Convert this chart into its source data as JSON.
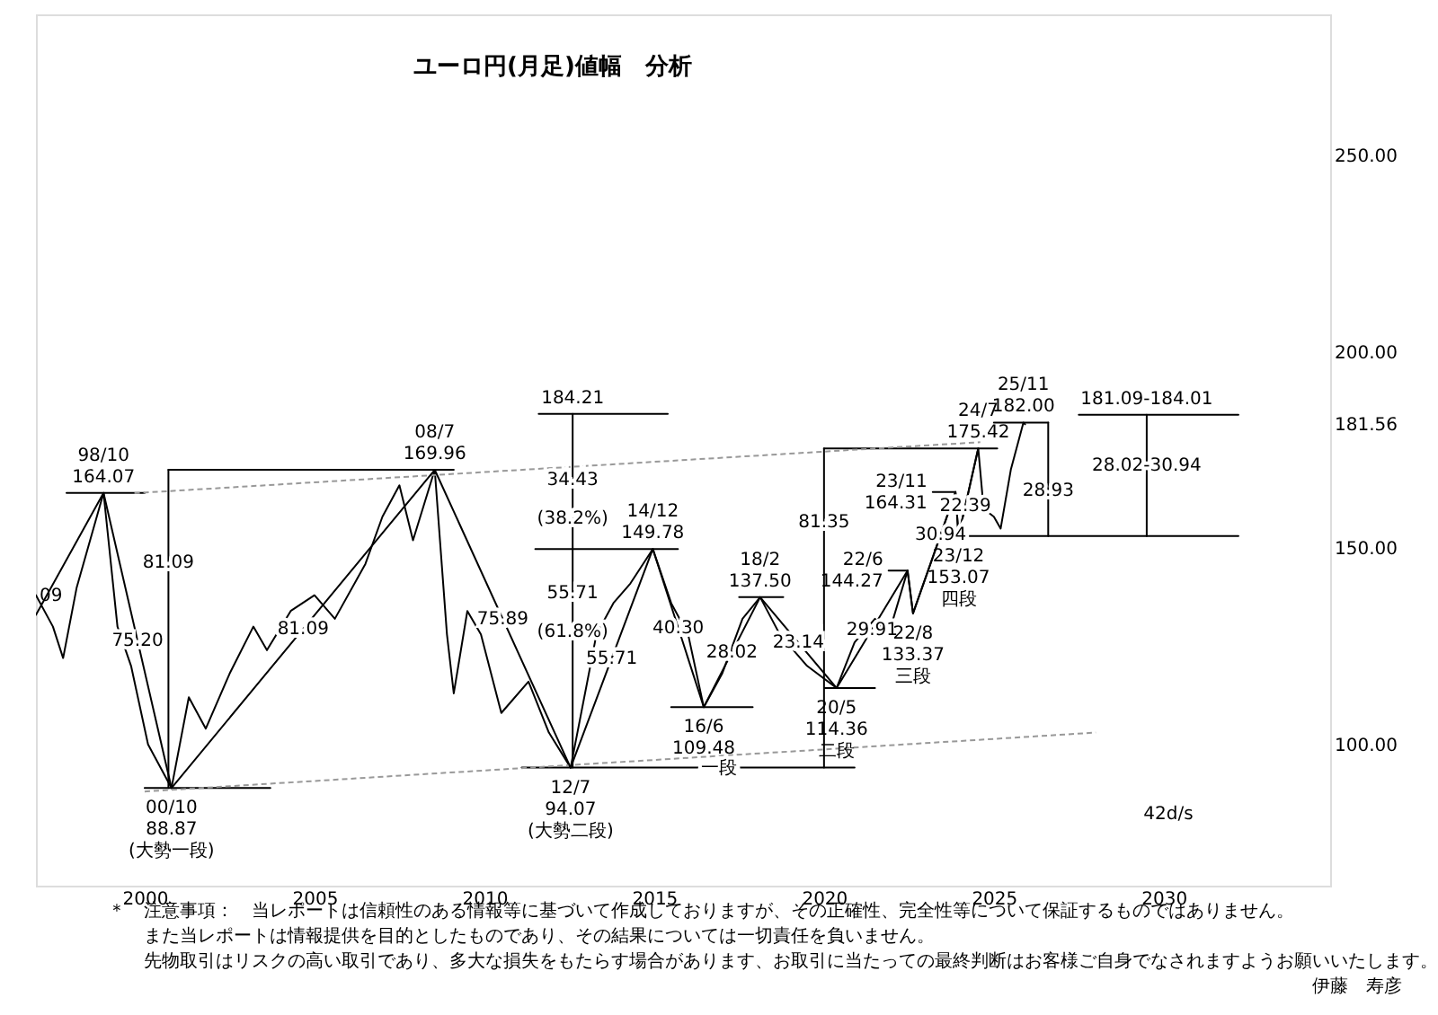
{
  "chart_data": {
    "type": "line",
    "title": "ユーロ円(月足)値幅　分析",
    "marker": "none",
    "line_style": "solid",
    "xlim": [
      1996.8,
      2034.9
    ],
    "xticks": [
      2000,
      2005,
      2010,
      2015,
      2020,
      2025,
      2030
    ],
    "ylim": [
      64,
      286
    ],
    "yticks": [
      {
        "value": 100,
        "label": "100.00"
      },
      {
        "value": 150,
        "label": "150.00"
      },
      {
        "value": 181.56,
        "label": "181.56"
      },
      {
        "value": 200,
        "label": "200.00"
      },
      {
        "value": 250,
        "label": "250.00"
      }
    ],
    "series": [
      {
        "color": "#000000",
        "x": [
          1996.8,
          1997.3,
          1997.6,
          1998.0,
          1998.79,
          1999.2,
          1999.6,
          2000.1,
          2000.79,
          2001.3,
          2001.8,
          2002.5,
          2003.2,
          2003.6,
          2004.3,
          2005.0,
          2005.6,
          2006.5,
          2007.0,
          2007.5,
          2007.9,
          2008.54,
          2008.9,
          2009.1,
          2009.5,
          2009.9,
          2010.5,
          2011.3,
          2011.9,
          2012.54,
          2013.3,
          2013.8,
          2014.3,
          2014.96,
          2015.5,
          2016.0,
          2016.46,
          2017.0,
          2017.6,
          2018.12,
          2018.7,
          2019.5,
          2020.37,
          2020.9,
          2021.5,
          2021.9,
          2022.46,
          2022.62,
          2023.3,
          2023.87,
          2023.96,
          2024.54,
          2024.7,
          2025.0,
          2025.2,
          2025.5,
          2025.87,
          2025.92
        ],
        "values": [
          138,
          130,
          122,
          140,
          164.07,
          130,
          120,
          100,
          88.87,
          112,
          104,
          118,
          130,
          124,
          134,
          138,
          132,
          146,
          158,
          166,
          152,
          169.96,
          128,
          113,
          134,
          128,
          108,
          116,
          103,
          94.07,
          128,
          136,
          141,
          149.78,
          136,
          128,
          109.48,
          118,
          132,
          137.5,
          128,
          120,
          114.36,
          126,
          132,
          128,
          144.27,
          133.37,
          150,
          164.31,
          153.07,
          175.42,
          160,
          158,
          155,
          170,
          182.0,
          181.56
        ]
      },
      {
        "type": "line",
        "color": "#000000",
        "x": [
          1997.7,
          2000.0
        ],
        "values": [
          164.07,
          164.07
        ]
      },
      {
        "type": "line",
        "color": "#000000",
        "x": [
          2000.0,
          2003.7
        ],
        "values": [
          88.87,
          88.87
        ]
      },
      {
        "type": "line",
        "color": "#000000",
        "x": [
          2000.7,
          2009.1
        ],
        "values": [
          169.96,
          169.96
        ]
      },
      {
        "type": "line",
        "color": "#000000",
        "x": [
          2000.7,
          2000.7
        ],
        "values": [
          88.87,
          169.96
        ]
      },
      {
        "type": "line",
        "color": "#000000",
        "x": [
          2011.6,
          2015.4
        ],
        "values": [
          184.21,
          184.21
        ]
      },
      {
        "type": "line",
        "color": "#000000",
        "x": [
          2011.5,
          2015.7
        ],
        "values": [
          149.78,
          149.78
        ]
      },
      {
        "type": "line",
        "color": "#000000",
        "x": [
          2012.6,
          2012.6
        ],
        "values": [
          94.07,
          184.21
        ]
      },
      {
        "type": "line",
        "color": "#000000",
        "x": [
          2011.1,
          2020.9
        ],
        "values": [
          94.07,
          94.07
        ]
      },
      {
        "type": "line",
        "color": "#000000",
        "x": [
          2015.5,
          2017.9
        ],
        "values": [
          109.48,
          109.48
        ]
      },
      {
        "type": "line",
        "color": "#000000",
        "x": [
          2017.5,
          2018.8
        ],
        "values": [
          137.5,
          137.5
        ]
      },
      {
        "type": "line",
        "color": "#000000",
        "x": [
          2020.0,
          2020.0
        ],
        "values": [
          94.07,
          175.42
        ]
      },
      {
        "type": "line",
        "color": "#000000",
        "x": [
          2020.0,
          2025.1
        ],
        "values": [
          175.42,
          175.42
        ]
      },
      {
        "type": "line",
        "color": "#000000",
        "x": [
          2020.0,
          2021.5
        ],
        "values": [
          114.36,
          114.36
        ]
      },
      {
        "type": "line",
        "color": "#000000",
        "x": [
          2024.2,
          2032.2
        ],
        "values": [
          153.07,
          153.07
        ]
      },
      {
        "type": "line",
        "color": "#000000",
        "x": [
          2026.6,
          2026.6
        ],
        "values": [
          153.07,
          182.0
        ]
      },
      {
        "type": "line",
        "color": "#000000",
        "x": [
          2029.5,
          2029.5
        ],
        "values": [
          153.07,
          184.01
        ]
      },
      {
        "type": "line",
        "color": "#000000",
        "x": [
          2025.0,
          2026.6
        ],
        "values": [
          182.0,
          182.0
        ]
      },
      {
        "type": "line",
        "color": "#000000",
        "x": [
          2027.5,
          2032.2
        ],
        "values": [
          184.01,
          184.01
        ]
      },
      {
        "type": "line",
        "color": "#000000",
        "x": [
          2021.9,
          2022.46
        ],
        "values": [
          144.27,
          144.27
        ]
      },
      {
        "type": "line",
        "color": "#000000",
        "x": [
          2023.2,
          2023.87
        ],
        "values": [
          164.31,
          164.31
        ]
      },
      {
        "type": "line",
        "color": "#999999",
        "line_style": "dashed",
        "x": [
          2000.0,
          2028.0
        ],
        "values": [
          88.0,
          103.0
        ]
      },
      {
        "type": "line",
        "color": "#999999",
        "line_style": "dashed",
        "x": [
          1999.7,
          2024.6
        ],
        "values": [
          164.0,
          177.0
        ]
      },
      {
        "type": "line",
        "color": "#000000",
        "x": [
          1996.8,
          1998.79,
          2000.79,
          2008.54,
          2012.54,
          2014.96,
          2016.46,
          2018.12,
          2020.37,
          2022.46,
          2022.62,
          2023.87,
          2023.96,
          2024.54
        ],
        "values": [
          133,
          164.07,
          88.87,
          169.96,
          94.07,
          149.78,
          109.48,
          137.5,
          114.36,
          144.27,
          133.37,
          164.31,
          153.07,
          175.42
        ]
      }
    ],
    "annotations": [
      {
        "text": "98/10\n164.07",
        "x": 1998.79,
        "y": 164.07
      },
      {
        "text": "81.09",
        "x": 2000.7,
        "y": 146.5
      },
      {
        "text": "75.20",
        "x": 1999.79,
        "y": 126.47
      },
      {
        "text": "00/10\n88.87\n(大勢一段)",
        "x": 2000.79,
        "y": 88.87
      },
      {
        "text": "81.09",
        "x": 2004.665,
        "y": 129.415
      },
      {
        "text": "08/7\n169.96",
        "x": 2008.54,
        "y": 169.96
      },
      {
        "text": "75.89",
        "x": 2010.54,
        "y": 132.015
      },
      {
        "text": "184.21",
        "x": 2012.6,
        "y": 184.21
      },
      {
        "text": "34.43",
        "x": 2012.6,
        "y": 167.4
      },
      {
        "text": "(38.2%)",
        "x": 2012.6,
        "y": 157.7
      },
      {
        "text": "55.71",
        "x": 2012.6,
        "y": 138.6
      },
      {
        "text": "(61.8%)",
        "x": 2012.6,
        "y": 128.8
      },
      {
        "text": "55.71",
        "x": 2013.75,
        "y": 121.925
      },
      {
        "text": "14/12\n149.78",
        "x": 2014.96,
        "y": 149.78
      },
      {
        "text": "40.30",
        "x": 2015.71,
        "y": 129.63
      },
      {
        "text": "12/7\n94.07\n(大勢二段)",
        "x": 2012.54,
        "y": 94.07
      },
      {
        "text": "28.02",
        "x": 2017.29,
        "y": 123.49
      },
      {
        "text": "16/6\n109.48",
        "x": 2016.46,
        "y": 109.48
      },
      {
        "text": "一段",
        "x": 2016.9,
        "y": 94.07
      },
      {
        "text": "18/2\n137.50",
        "x": 2018.12,
        "y": 137.5
      },
      {
        "text": "23.14",
        "x": 2019.245,
        "y": 125.93
      },
      {
        "text": "81.35",
        "x": 2020.0,
        "y": 156.7
      },
      {
        "text": "29.91",
        "x": 2021.415,
        "y": 129.315
      },
      {
        "text": "20/5\n114.36\n二段",
        "x": 2020.37,
        "y": 114.36
      },
      {
        "text": "22/6\n144.27",
        "x": 2021.9,
        "y": 144.27
      },
      {
        "text": "30.94",
        "x": 2023.4325,
        "y": 153.481
      },
      {
        "text": "22/8\n133.37\n三段",
        "x": 2022.62,
        "y": 133.37
      },
      {
        "text": "23/11\n164.31",
        "x": 2023.2,
        "y": 164.31
      },
      {
        "text": "22.39",
        "x": 2024.163,
        "y": 160.8025
      },
      {
        "text": "24/7\n175.42",
        "x": 2024.54,
        "y": 175.42
      },
      {
        "text": "25/11\n182.00",
        "x": 2025.87,
        "y": 182.0
      },
      {
        "text": "23/12\n153.07\n四段",
        "x": 2023.96,
        "y": 153.07
      },
      {
        "text": "28.93",
        "x": 2026.6,
        "y": 164.7
      },
      {
        "text": "181.09-184.01",
        "x": 2029.5,
        "y": 184.01
      },
      {
        "text": "28.02-30.94",
        "x": 2029.5,
        "y": 171.2
      },
      {
        "text": "09",
        "x": 1996.8,
        "y": 138
      },
      "42d/s",
      "＊　注意事項：　当レポートは信頼性のある情報等に基づいて作成しておりますが、その正確性、完全性等について保証するものではありません。",
      "また当レポートは情報提供を目的としたものであり、その結果については一切責任を負いません。",
      "先物取引はリスクの高い取引であり、多大な損失をもたらす場合があります、お取引に当たっての最終判断はお客様ご自身でなされますようお願いいたします。",
      "伊藤　寿彦"
    ]
  }
}
